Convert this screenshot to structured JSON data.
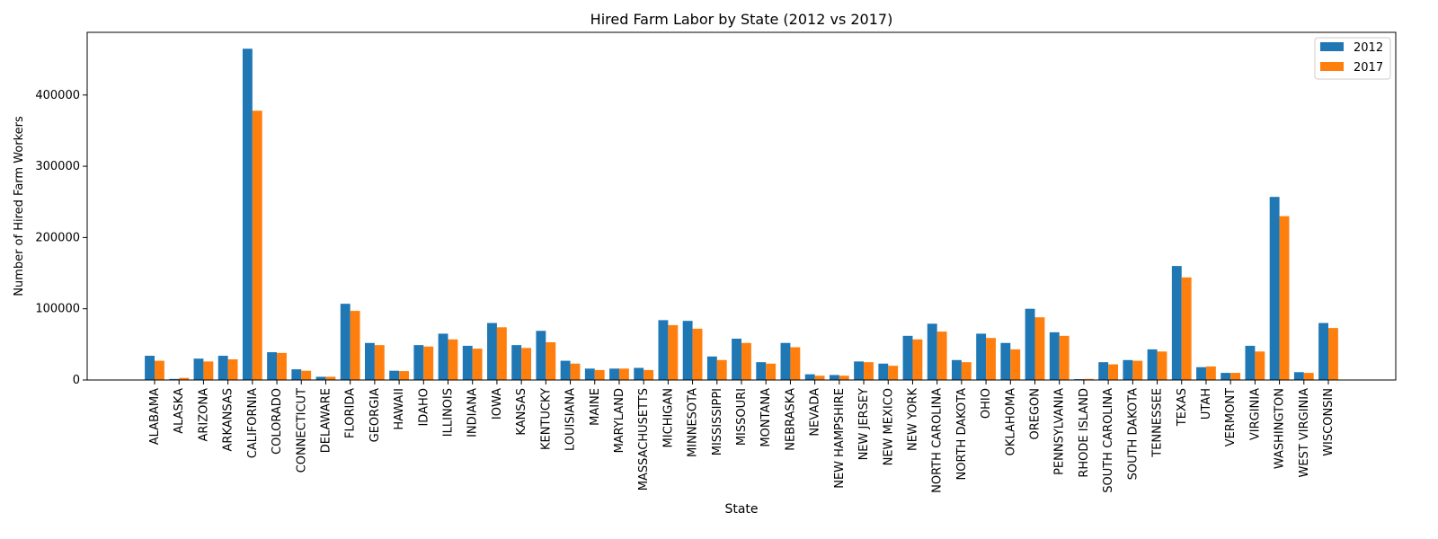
{
  "chart_data": {
    "type": "bar",
    "title": "Hired Farm Labor by State (2012 vs 2017)",
    "xlabel": "State",
    "ylabel": "Number of Hired Farm Workers",
    "ylim": [
      0,
      488000
    ],
    "yticks": [
      0,
      100000,
      200000,
      300000,
      400000
    ],
    "grid": false,
    "legend_position": "top-right",
    "categories": [
      "ALABAMA",
      "ALASKA",
      "ARIZONA",
      "ARKANSAS",
      "CALIFORNIA",
      "COLORADO",
      "CONNECTICUT",
      "DELAWARE",
      "FLORIDA",
      "GEORGIA",
      "HAWAII",
      "IDAHO",
      "ILLINOIS",
      "INDIANA",
      "IOWA",
      "KANSAS",
      "KENTUCKY",
      "LOUISIANA",
      "MAINE",
      "MARYLAND",
      "MASSACHUSETTS",
      "MICHIGAN",
      "MINNESOTA",
      "MISSISSIPPI",
      "MISSOURI",
      "MONTANA",
      "NEBRASKA",
      "NEVADA",
      "NEW HAMPSHIRE",
      "NEW JERSEY",
      "NEW MEXICO",
      "NEW YORK",
      "NORTH CAROLINA",
      "NORTH DAKOTA",
      "OHIO",
      "OKLAHOMA",
      "OREGON",
      "PENNSYLVANIA",
      "RHODE ISLAND",
      "SOUTH CAROLINA",
      "SOUTH DAKOTA",
      "TENNESSEE",
      "TEXAS",
      "UTAH",
      "VERMONT",
      "VIRGINIA",
      "WASHINGTON",
      "WEST VIRGINIA",
      "WISCONSIN"
    ],
    "series": [
      {
        "name": "2012",
        "color": "#1f77b4",
        "values": [
          34000,
          1500,
          30000,
          34000,
          465000,
          39000,
          15000,
          4500,
          107000,
          52000,
          13000,
          49000,
          65000,
          48000,
          80000,
          49000,
          69000,
          27000,
          16000,
          16000,
          17000,
          84000,
          83000,
          33000,
          58000,
          25000,
          52000,
          8000,
          7000,
          26000,
          23000,
          62000,
          79000,
          28000,
          65000,
          52000,
          100000,
          67000,
          1200,
          25000,
          28000,
          43000,
          160000,
          18000,
          10000,
          48000,
          257000,
          11000,
          80000
        ]
      },
      {
        "name": "2017",
        "color": "#ff7f0e",
        "values": [
          27000,
          3000,
          26000,
          29000,
          378000,
          38000,
          13000,
          4500,
          97000,
          49000,
          12500,
          47000,
          57000,
          44000,
          74000,
          45000,
          53000,
          23000,
          14000,
          16000,
          14000,
          77000,
          72000,
          28000,
          52000,
          23000,
          46000,
          6000,
          6000,
          25000,
          20000,
          57000,
          68000,
          25000,
          59000,
          43000,
          88000,
          62000,
          1500,
          22000,
          27000,
          40000,
          144000,
          19000,
          10000,
          40000,
          230000,
          10000,
          73000
        ]
      }
    ]
  }
}
